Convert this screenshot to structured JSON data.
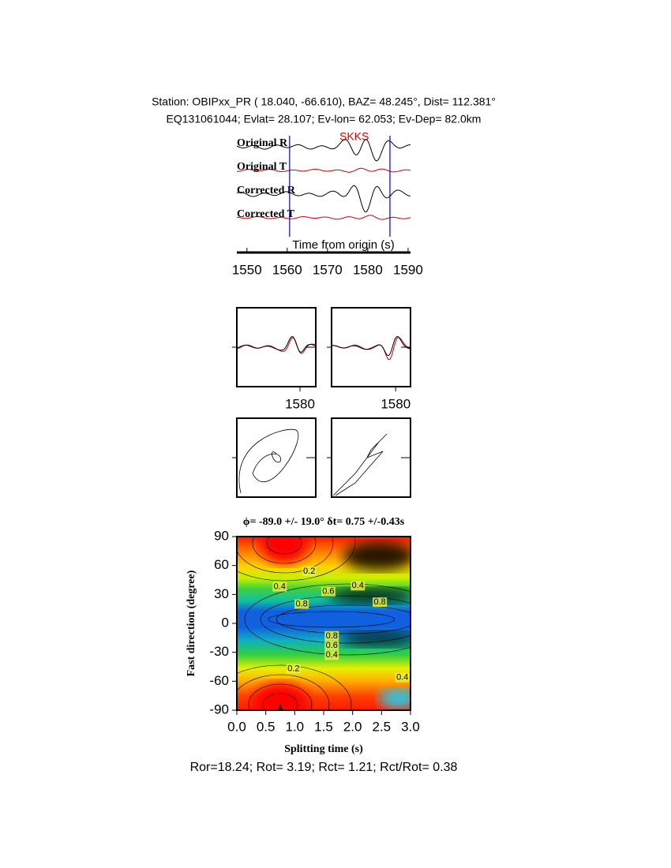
{
  "header": {
    "line1": "Station: OBIPxx_PR (  18.040,  -66.610), BAZ=   48.245°, Dist=  112.381°",
    "line2": "EQ131061044; Evlat=  28.107; Ev-lon=  62.053; Ev-Dep= 82.0km"
  },
  "chart_data": [
    {
      "type": "waveform",
      "traces": [
        "Original R",
        "Original T",
        "Corrected R",
        "Corrected T"
      ],
      "phase": "SKKS",
      "xlabel": "Time from origin (s)",
      "xlim": [
        1547.5,
        1590.6
      ],
      "xticks": [
        1550,
        1560,
        1570,
        1580,
        1590
      ],
      "window": [
        1560.6,
        1585.5
      ]
    },
    {
      "type": "waveform-zoom",
      "xlim": [
        1564,
        1584
      ],
      "xticks": [
        1580
      ]
    },
    {
      "type": "waveform-zoom",
      "xlim": [
        1560.5,
        1584.5
      ],
      "xticks": [
        1580
      ]
    },
    {
      "type": "particle-motion"
    },
    {
      "type": "particle-motion"
    },
    {
      "type": "contour",
      "title": "ϕ= -89.0 +/- 19.0° δt= 0.75 +/-0.43s",
      "xlabel": "Splitting time (s)",
      "ylabel": "Fast direction (degree)",
      "xlim": [
        0,
        3
      ],
      "ylim": [
        -90,
        90
      ],
      "xticks": [
        {
          "value": 0,
          "label": "0.0"
        },
        0.5,
        {
          "value": 1,
          "label": "1.0"
        },
        1.5,
        {
          "value": 2,
          "label": "2.0"
        },
        2.5,
        {
          "value": 3,
          "label": "3.0"
        }
      ],
      "yticks": [
        90,
        60,
        30,
        0,
        -30,
        -60,
        -90
      ],
      "contour_labels": [
        {
          "level": 0.2,
          "x": 1.25,
          "y": 54
        },
        {
          "level": 0.4,
          "x": 0.74,
          "y": 38
        },
        {
          "level": 0.6,
          "x": 1.58,
          "y": 33
        },
        {
          "level": 0.4,
          "x": 2.09,
          "y": 39
        },
        {
          "level": 0.8,
          "x": 2.47,
          "y": 22
        },
        {
          "level": 0.8,
          "x": 1.12,
          "y": 20
        },
        {
          "level": 0.8,
          "x": 1.64,
          "y": -13
        },
        {
          "level": 0.6,
          "x": 1.64,
          "y": -23
        },
        {
          "level": 0.4,
          "x": 1.64,
          "y": -33
        },
        {
          "level": 0.2,
          "x": 0.98,
          "y": -47
        },
        {
          "level": 0.4,
          "x": 2.86,
          "y": -56
        }
      ]
    }
  ],
  "footer": "Ror=18.24; Rot= 3.19; Rct= 1.21; Rct/Rot= 0.38"
}
